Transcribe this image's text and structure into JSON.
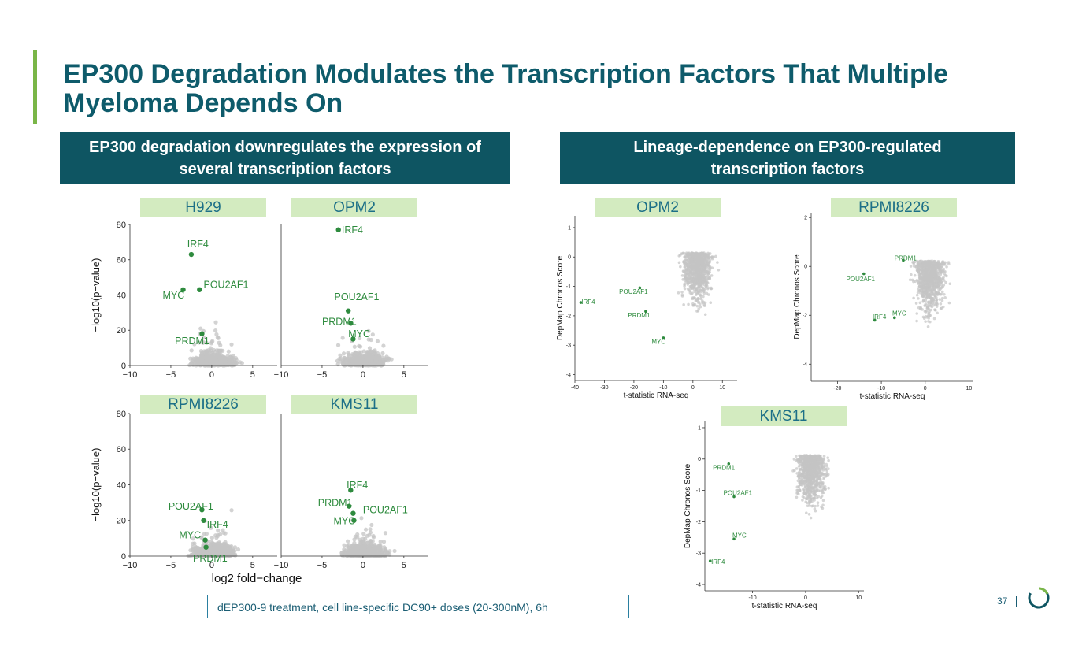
{
  "slide": {
    "title": "EP300 Degradation Modulates the Transcription Factors That Multiple Myeloma Depends On",
    "left_header": "EP300 degradation downregulates the expression of several transcription factors",
    "right_header": "Lineage-dependence on EP300-regulated transcription factors",
    "footnote": "dEP300-9 treatment, cell line-specific DC90+ doses (20-300nM), 6h",
    "page_number": "37",
    "colors": {
      "header_bg": "#0e5562",
      "title": "#0e5b6b",
      "accent": "#7ab648",
      "label_bg": "#d3ebc0",
      "point_gray": "#c4c4c4",
      "highlight": "#2e8b3e"
    }
  },
  "chart_data": [
    {
      "type": "scatter",
      "title": "H929",
      "xlabel": "",
      "ylabel": "−log10(p−value)",
      "xlim": [
        -10,
        8
      ],
      "ylim": [
        0,
        80
      ],
      "xticks": [
        "−10",
        "−5",
        "0",
        "5"
      ],
      "yticks": [
        "0",
        "20",
        "40",
        "60",
        "80"
      ],
      "highlights": [
        {
          "label": "IRF4",
          "x": -2.5,
          "y": 63,
          "lx": -3,
          "ly": 67
        },
        {
          "label": "POU2AF1",
          "x": -1.5,
          "y": 43,
          "lx": -1,
          "ly": 44
        },
        {
          "label": "MYC",
          "x": -3.5,
          "y": 43,
          "lx": -6,
          "ly": 38
        },
        {
          "label": "PRDM1",
          "x": -1.2,
          "y": 18,
          "lx": -4.5,
          "ly": 12
        }
      ]
    },
    {
      "type": "scatter",
      "title": "OPM2",
      "xlabel": "",
      "ylabel": "",
      "xlim": [
        -10,
        8
      ],
      "ylim": [
        0,
        80
      ],
      "xticks": [
        "−10",
        "−5",
        "0",
        "5"
      ],
      "yticks": [],
      "highlights": [
        {
          "label": "IRF4",
          "x": -3,
          "y": 77,
          "lx": -2.6,
          "ly": 75
        },
        {
          "label": "POU2AF1",
          "x": -1.8,
          "y": 31,
          "lx": -3.5,
          "ly": 37
        },
        {
          "label": "PRDM1",
          "x": -1.5,
          "y": 24,
          "lx": -5,
          "ly": 23
        },
        {
          "label": "MYC",
          "x": -1.2,
          "y": 15,
          "lx": -1.8,
          "ly": 16
        }
      ]
    },
    {
      "type": "scatter",
      "title": "RPMI8226",
      "xlabel": "",
      "ylabel": "−log10(p−value)",
      "xlim": [
        -10,
        8
      ],
      "ylim": [
        0,
        80
      ],
      "xticks": [
        "−10",
        "−5",
        "0",
        "5"
      ],
      "yticks": [
        "0",
        "20",
        "40",
        "60",
        "80"
      ],
      "highlights": [
        {
          "label": "POU2AF1",
          "x": -1.2,
          "y": 26,
          "lx": -5.3,
          "ly": 26
        },
        {
          "label": "IRF4",
          "x": -1.0,
          "y": 20,
          "lx": -0.6,
          "ly": 16
        },
        {
          "label": "MYC",
          "x": -0.8,
          "y": 9,
          "lx": -4,
          "ly": 10
        },
        {
          "label": "PRDM1",
          "x": -0.7,
          "y": 5,
          "lx": -2.3,
          "ly": -3
        }
      ]
    },
    {
      "type": "scatter",
      "title": "KMS11",
      "xlabel": "log2 fold−change",
      "ylabel": "",
      "xlim": [
        -10,
        8
      ],
      "ylim": [
        0,
        80
      ],
      "xticks": [
        "−10",
        "−5",
        "0",
        "5"
      ],
      "yticks": [],
      "highlights": [
        {
          "label": "IRF4",
          "x": -1.5,
          "y": 37,
          "lx": -2,
          "ly": 38
        },
        {
          "label": "PRDM1",
          "x": -1.7,
          "y": 28,
          "lx": -5.5,
          "ly": 28
        },
        {
          "label": "POU2AF1",
          "x": -1.2,
          "y": 24,
          "lx": 0,
          "ly": 24
        },
        {
          "label": "MYC",
          "x": -1.1,
          "y": 20,
          "lx": -3.6,
          "ly": 18
        }
      ]
    },
    {
      "type": "scatter",
      "title": "OPM2",
      "xlabel": "t-statistic RNA-seq",
      "ylabel": "DepMap Chronos Score",
      "xlim": [
        -40,
        15
      ],
      "ylim": [
        -4.2,
        1.4
      ],
      "xticks": [
        "-40",
        "-30",
        "-20",
        "-10",
        "0",
        "10"
      ],
      "yticks": [
        "-4",
        "-3",
        "-2",
        "-1",
        "0",
        "1"
      ],
      "highlights": [
        {
          "label": "IRF4",
          "x": -38,
          "y": -1.55,
          "lx": -37.8,
          "ly": -1.6
        },
        {
          "label": "POU2AF1",
          "x": -18,
          "y": -1.05,
          "lx": -25,
          "ly": -1.25
        },
        {
          "label": "PRDM1",
          "x": -16,
          "y": -1.85,
          "lx": -22,
          "ly": -2.05
        },
        {
          "label": "MYC",
          "x": -10,
          "y": -2.75,
          "lx": -14,
          "ly": -2.95
        }
      ]
    },
    {
      "type": "scatter",
      "title": "RPMI8226",
      "xlabel": "t-statistic RNA-seq",
      "ylabel": "DepMap Chronos Score",
      "xlim": [
        -26,
        11
      ],
      "ylim": [
        -4.7,
        2.2
      ],
      "xticks": [
        "-20",
        "-10",
        "0",
        "10"
      ],
      "yticks": [
        "-4",
        "-2",
        "0",
        "2"
      ],
      "highlights": [
        {
          "label": "PRDM1",
          "x": -5,
          "y": 0.25,
          "lx": -7,
          "ly": 0.25
        },
        {
          "label": "POU2AF1",
          "x": -14,
          "y": -0.3,
          "lx": -18,
          "ly": -0.6
        },
        {
          "label": "IRF4",
          "x": -11.5,
          "y": -2.2,
          "lx": -12,
          "ly": -2.15
        },
        {
          "label": "MYC",
          "x": -7,
          "y": -2.1,
          "lx": -7.5,
          "ly": -2
        }
      ]
    },
    {
      "type": "scatter",
      "title": "KMS11",
      "xlabel": "t-statistic RNA-seq",
      "ylabel": "DepMap Chronos Score",
      "xlim": [
        -19,
        11
      ],
      "ylim": [
        -4.2,
        1.2
      ],
      "xticks": [
        "-10",
        "0",
        "10"
      ],
      "yticks": [
        "-4",
        "-3",
        "-2",
        "-1",
        "0",
        "1"
      ],
      "highlights": [
        {
          "label": "PRDM1",
          "x": -14.5,
          "y": -0.15,
          "lx": -17.5,
          "ly": -0.35
        },
        {
          "label": "POU2AF1",
          "x": -13.5,
          "y": -1.2,
          "lx": -15.5,
          "ly": -1.15
        },
        {
          "label": "MYC",
          "x": -13.5,
          "y": -2.55,
          "lx": -13.8,
          "ly": -2.5
        },
        {
          "label": "IRF4",
          "x": -18,
          "y": -3.25,
          "lx": -17.8,
          "ly": -3.35
        }
      ]
    }
  ]
}
